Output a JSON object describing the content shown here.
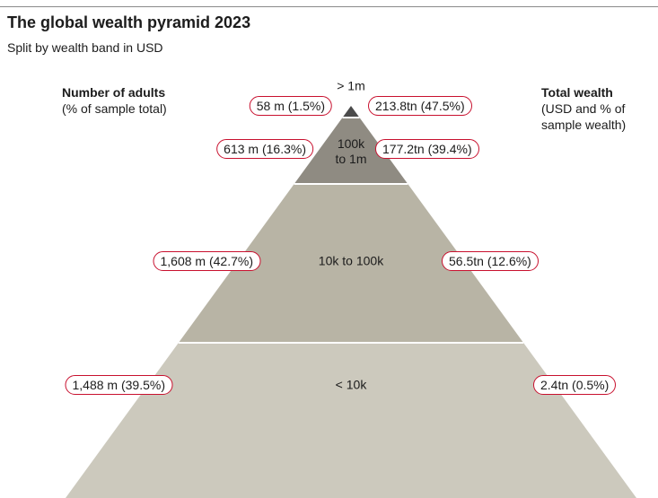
{
  "title": "The global wealth pyramid 2023",
  "subtitle": "Split by wealth band in USD",
  "left_header": {
    "title": "Number of adults",
    "subtitle": "(% of sample total)"
  },
  "right_header": {
    "title": "Total wealth",
    "subtitle_line1": "(USD and % of",
    "subtitle_line2": "sample wealth)"
  },
  "chart_data": {
    "type": "pyramid",
    "title": "The global wealth pyramid 2023",
    "subtitle": "Split by wealth band in USD",
    "bands": [
      {
        "band": "> 1m",
        "label_lines": [
          "> 1m"
        ],
        "adults_label": "58 m (1.5%)",
        "adults_millions": 58,
        "adults_pct": 1.5,
        "wealth_label": "213.8tn (47.5%)",
        "wealth_tn": 213.8,
        "wealth_pct": 47.5,
        "color": "#4a4a4a"
      },
      {
        "band": "100k to 1m",
        "label_lines": [
          "100k",
          "to 1m"
        ],
        "adults_label": "613 m (16.3%)",
        "adults_millions": 613,
        "adults_pct": 16.3,
        "wealth_label": "177.2tn (39.4%)",
        "wealth_tn": 177.2,
        "wealth_pct": 39.4,
        "color": "#8f8b82"
      },
      {
        "band": "10k to 100k",
        "label_lines": [
          "10k to 100k"
        ],
        "adults_label": "1,608 m (42.7%)",
        "adults_millions": 1608,
        "adults_pct": 42.7,
        "wealth_label": "56.5tn (12.6%)",
        "wealth_tn": 56.5,
        "wealth_pct": 12.6,
        "color": "#b8b4a5"
      },
      {
        "band": "< 10k",
        "label_lines": [
          "< 10k"
        ],
        "adults_label": "1,488 m (39.5%)",
        "adults_millions": 1488,
        "adults_pct": 39.5,
        "wealth_label": "2.4tn (0.5%)",
        "wealth_tn": 2.4,
        "wealth_pct": 0.5,
        "color": "#ccc9bd"
      }
    ],
    "pill_border_color": "#c8102e"
  }
}
